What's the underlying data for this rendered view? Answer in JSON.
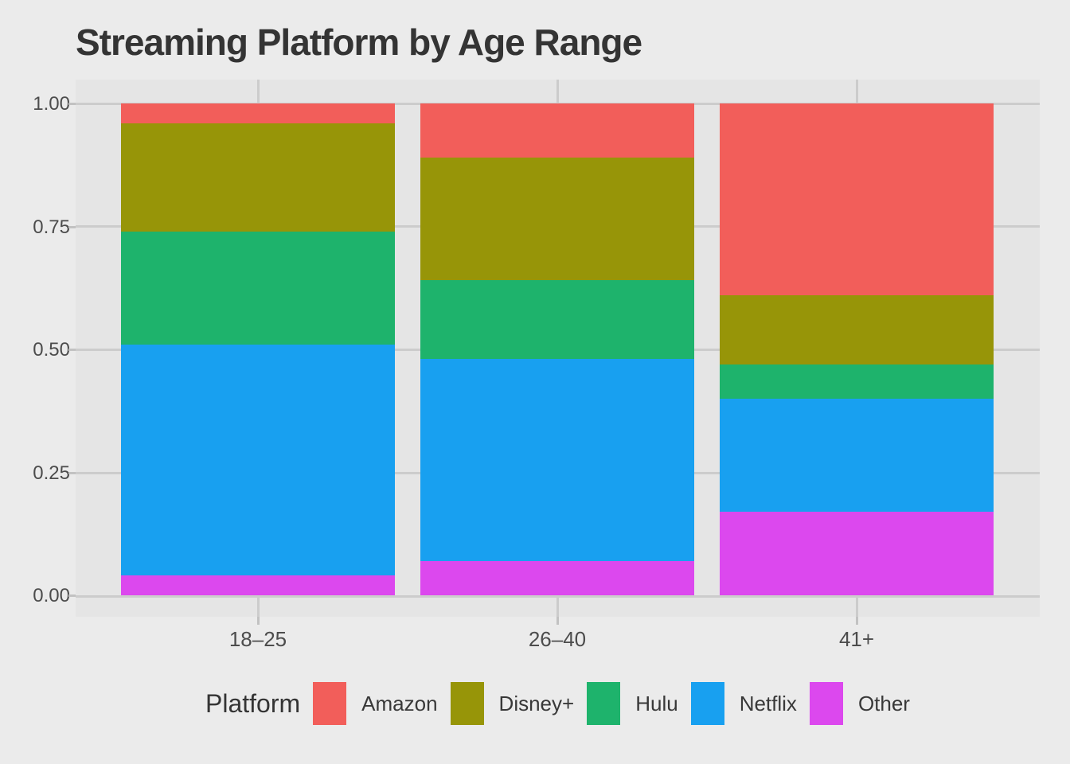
{
  "title": "Streaming Platform by Age Range",
  "colors": {
    "background": "#EBEBEB",
    "panel": "#E5E5E5",
    "gridline": "#CCCCCC",
    "tick": "#C2C2C2",
    "axis_text": "#4C4C4C",
    "title_text": "#343434",
    "amazon": "#F25E5A",
    "disney": "#979508",
    "hulu": "#1EB36C",
    "netflix": "#18A0F0",
    "other": "#DC48EE"
  },
  "chart_data": {
    "type": "bar",
    "stacked": true,
    "normalized": true,
    "title": "Streaming Platform by Age Range",
    "xlabel": "",
    "ylabel": "",
    "categories": [
      "18–25",
      "26–40",
      "41+"
    ],
    "series": [
      {
        "name": "Amazon",
        "color": "#F25E5A",
        "values": [
          0.04,
          0.11,
          0.39
        ]
      },
      {
        "name": "Disney+",
        "color": "#979508",
        "values": [
          0.22,
          0.25,
          0.14
        ]
      },
      {
        "name": "Hulu",
        "color": "#1EB36C",
        "values": [
          0.23,
          0.16,
          0.07
        ]
      },
      {
        "name": "Netflix",
        "color": "#18A0F0",
        "values": [
          0.47,
          0.41,
          0.23
        ]
      },
      {
        "name": "Other",
        "color": "#DC48EE",
        "values": [
          0.04,
          0.07,
          0.17
        ]
      }
    ],
    "stack_order_bottom_to_top": [
      "Other",
      "Netflix",
      "Hulu",
      "Disney+",
      "Amazon"
    ],
    "ylim": [
      0,
      1
    ],
    "y_ticks": [
      {
        "label": "1.00",
        "value": 1.0
      },
      {
        "label": "0.75",
        "value": 0.75
      },
      {
        "label": "0.50",
        "value": 0.5
      },
      {
        "label": "0.25",
        "value": 0.25
      },
      {
        "label": "0.00",
        "value": 0.0
      }
    ],
    "grid": "major-only",
    "legend": {
      "title": "Platform",
      "position": "bottom",
      "entries": [
        "Amazon",
        "Disney+",
        "Hulu",
        "Netflix",
        "Other"
      ]
    }
  }
}
